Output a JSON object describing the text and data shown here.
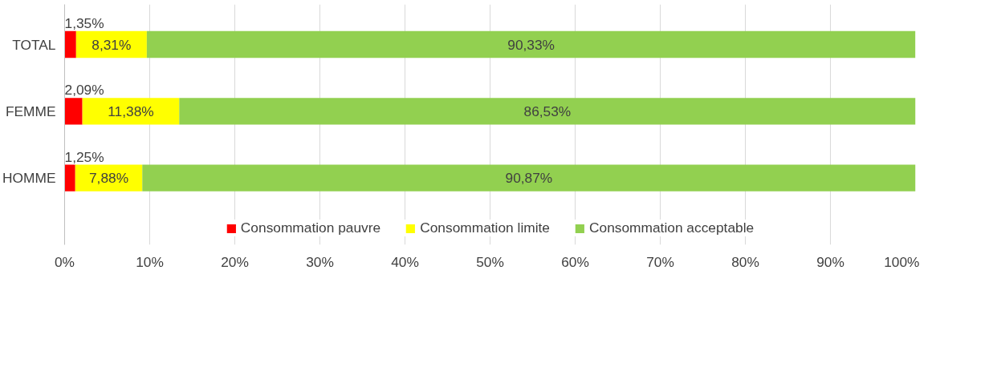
{
  "chart_data": {
    "type": "bar",
    "orientation": "horizontal",
    "stacked": true,
    "categories": [
      "TOTAL",
      "FEMME",
      "HOMME"
    ],
    "series": [
      {
        "name": "Consommation pauvre",
        "color": "#ff0000",
        "values": [
          1.35,
          2.09,
          1.25
        ],
        "value_labels": [
          "1,35%",
          "2,09%",
          "1,25%"
        ]
      },
      {
        "name": "Consommation limite",
        "color": "#ffff00",
        "values": [
          8.31,
          11.38,
          7.88
        ],
        "value_labels": [
          "8,31%",
          "11,38%",
          "7,88%"
        ]
      },
      {
        "name": "Consommation acceptable",
        "color": "#92d050",
        "values": [
          90.33,
          86.53,
          90.87
        ],
        "value_labels": [
          "90,33%",
          "86,53%",
          "90,87%"
        ]
      }
    ],
    "xlim": [
      0,
      100
    ],
    "xticks": [
      {
        "value": 0,
        "label": "0%"
      },
      {
        "value": 10,
        "label": "10%"
      },
      {
        "value": 20,
        "label": "20%"
      },
      {
        "value": 30,
        "label": "30%"
      },
      {
        "value": 40,
        "label": "40%"
      },
      {
        "value": 50,
        "label": "50%"
      },
      {
        "value": 60,
        "label": "60%"
      },
      {
        "value": 70,
        "label": "70%"
      },
      {
        "value": 80,
        "label": "80%"
      },
      {
        "value": 90,
        "label": "90%"
      },
      {
        "value": 100,
        "label": "100%"
      }
    ],
    "grid": "x",
    "legend": "bottom"
  }
}
